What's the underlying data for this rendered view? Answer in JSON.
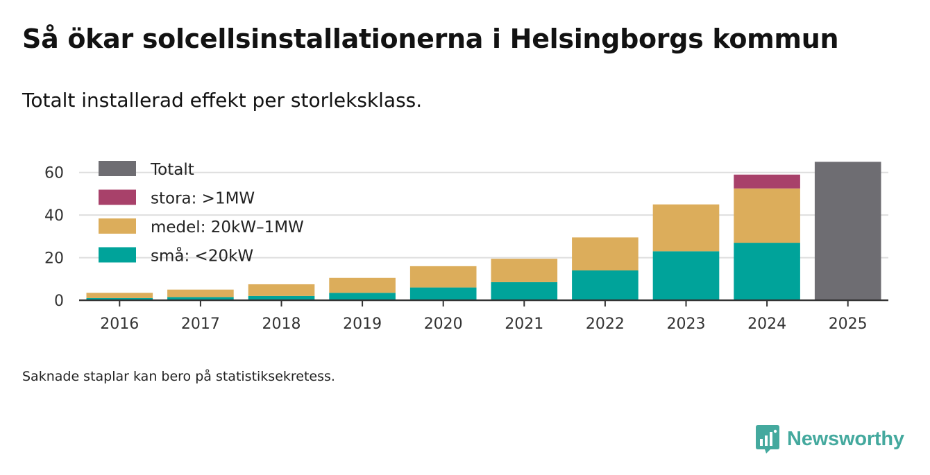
{
  "title": "Så ökar solcellsinstallationerna i Helsingborgs kommun",
  "subtitle": "Totalt installerad effekt per storleksklass.",
  "footnote": "Saknade staplar kan bero på statistiksekretess.",
  "brand": {
    "name": "Newsworthy",
    "icon": "newsworthy-logo-icon",
    "color": "#44a99e"
  },
  "chart_data": {
    "type": "bar",
    "stacked": true,
    "categories": [
      "2016",
      "2017",
      "2018",
      "2019",
      "2020",
      "2021",
      "2022",
      "2023",
      "2024",
      "2025"
    ],
    "series": [
      {
        "name": "små: <20kW",
        "color": "#00a39a",
        "values": [
          1,
          1.5,
          2,
          3.5,
          6,
          8.5,
          14,
          23,
          27,
          null
        ]
      },
      {
        "name": "medel: 20kW–1MW",
        "color": "#dcad5b",
        "values": [
          2.5,
          3.5,
          5.5,
          7,
          10,
          11,
          15.5,
          22,
          25.5,
          null
        ]
      },
      {
        "name": "stora: >1MW",
        "color": "#a8416a",
        "values": [
          null,
          null,
          null,
          null,
          null,
          null,
          null,
          null,
          6.5,
          null
        ]
      },
      {
        "name": "Totalt",
        "color": "#6e6d72",
        "values": [
          null,
          null,
          null,
          null,
          null,
          null,
          null,
          null,
          null,
          65
        ]
      }
    ],
    "legend": [
      "Totalt",
      "stora: >1MW",
      "medel: 20kW–1MW",
      "små: <20kW"
    ],
    "y_ticks": [
      "0",
      "20",
      "40",
      "60"
    ],
    "ylim": [
      0,
      70
    ],
    "grid": true,
    "legend_position": "top-left"
  }
}
